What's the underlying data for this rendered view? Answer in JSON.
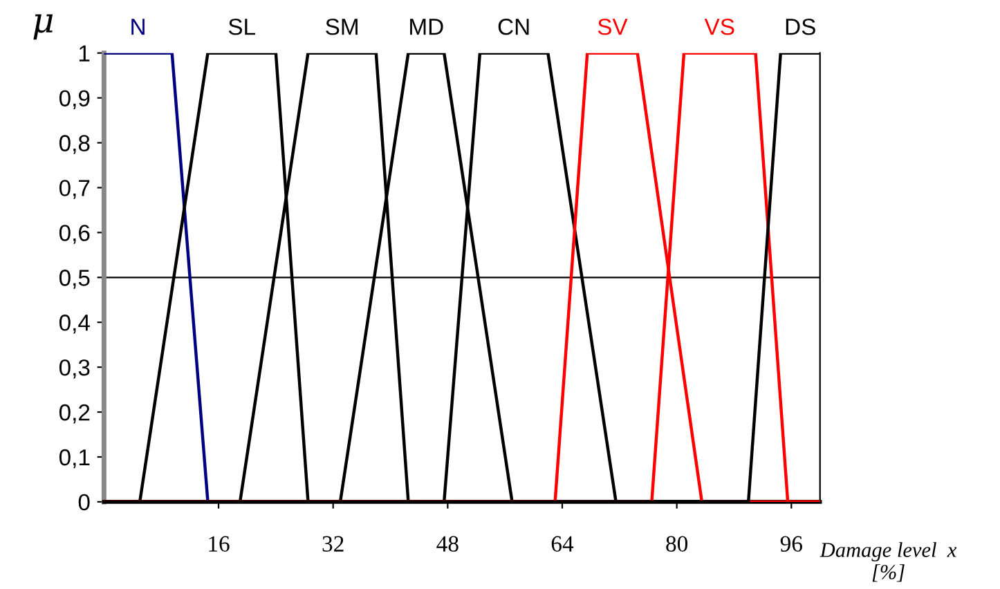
{
  "chart_data": {
    "type": "line",
    "ylabel": "μ",
    "xlabel": "Damage level  x\n[%]",
    "xlim": [
      0,
      100
    ],
    "ylim": [
      0,
      1
    ],
    "xticks": [
      16,
      32,
      48,
      64,
      80,
      96
    ],
    "yticks": [
      0,
      {
        "value": 0.1,
        "label": "0,1"
      },
      {
        "value": 0.2,
        "label": "0,2"
      },
      {
        "value": 0.3,
        "label": "0,3"
      },
      {
        "value": 0.4,
        "label": "0,4"
      },
      {
        "value": 0.5,
        "label": "0,5"
      },
      {
        "value": 0.6,
        "label": "0,6"
      },
      {
        "value": 0.7,
        "label": "0,7"
      },
      {
        "value": 0.8,
        "label": "0,8"
      },
      {
        "value": 0.9,
        "label": "0,9"
      },
      1
    ],
    "grid": false,
    "legend": false,
    "marker": "none",
    "line_style": "solid",
    "ref_lines": [
      {
        "axis": "y",
        "value": 0.5,
        "color": "#000000"
      }
    ],
    "series": [
      {
        "name": "N",
        "color": "#000080",
        "x": [
          0,
          9.5,
          14.5
        ],
        "values": [
          1,
          1,
          0
        ]
      },
      {
        "name": "SL",
        "color": "#000000",
        "x": [
          0,
          5,
          14.5,
          24,
          28.5,
          100
        ],
        "values": [
          0,
          0,
          1,
          1,
          0,
          0
        ]
      },
      {
        "name": "SM",
        "color": "#000000",
        "x": [
          0,
          19,
          28.5,
          38,
          42.5,
          100
        ],
        "values": [
          0,
          0,
          1,
          1,
          0,
          0
        ]
      },
      {
        "name": "MD",
        "color": "#000000",
        "x": [
          0,
          33,
          42.5,
          47.5,
          57,
          100
        ],
        "values": [
          0,
          0,
          1,
          1,
          0,
          0
        ]
      },
      {
        "name": "CN",
        "color": "#000000",
        "x": [
          0,
          47.5,
          52.5,
          62,
          71.5,
          100
        ],
        "values": [
          0,
          0,
          1,
          1,
          0,
          0
        ]
      },
      {
        "name": "SV",
        "color": "#ff0000",
        "x": [
          0,
          63,
          67.5,
          74.5,
          83.5,
          100
        ],
        "values": [
          0,
          0,
          1,
          1,
          0,
          0
        ]
      },
      {
        "name": "VS",
        "color": "#ff0000",
        "x": [
          0,
          76.5,
          81,
          91,
          95.5,
          100
        ],
        "values": [
          0,
          0,
          1,
          1,
          0,
          0
        ]
      },
      {
        "name": "DS",
        "color": "#000000",
        "x": [
          0,
          90,
          94.5,
          100
        ],
        "values": [
          0,
          0,
          1,
          1
        ]
      }
    ]
  }
}
